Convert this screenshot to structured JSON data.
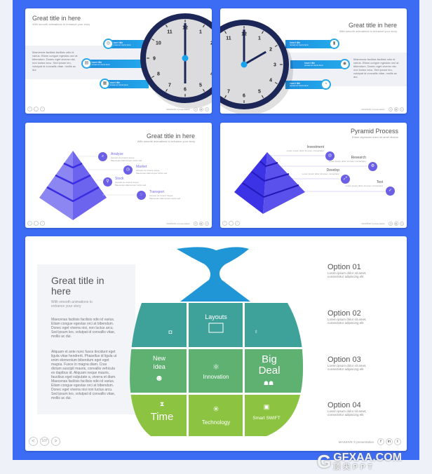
{
  "colors": {
    "background": "#3d6cf4",
    "clock_ring": "#1c2757",
    "clock_face": "#dcdcde",
    "accent_blue": "#1e9be4",
    "pyramid1": "#7b74f0",
    "pyramid2": "#4338e0",
    "bag_top": "#2196d6",
    "bag_teal": "#3fa29a",
    "bag_green": "#5fb172",
    "bag_lime": "#8cc441"
  },
  "clock_numbers": [
    "12",
    "1",
    "2",
    "3",
    "4",
    "5",
    "6",
    "7",
    "8",
    "9",
    "10",
    "11"
  ],
  "slide1": {
    "title": "Great title in here",
    "subtitle": "With smooth animations to enhance your story",
    "body": "Maecenas facilisis facilisis odio id varius. Etiam congue egestas orci at bibendum. Donec eget viverra nisi, non luctus arcu. Sed ipsum leo, volutpat id convallis vitae, mollis ac dui.",
    "items": [
      {
        "label": "Insert title",
        "desc": "Aenean ac viverra lacus"
      },
      {
        "label": "Insert title",
        "desc": "Aenean ac viverra lacus"
      },
      {
        "label": "Insert title",
        "desc": "Aenean ac viverra lacus"
      }
    ],
    "time": "6:00"
  },
  "slide2": {
    "title": "Great title in here",
    "subtitle": "With smooth animations to enhance your story",
    "body": "Maecenas facilisis facilisis odio id varius. Etiam congue egestas orci at bibendum. Donec eget viverra nisi, non luctus arcu. Sed ipsum leo, volutpat id convallis vitae, mollis ac dui.",
    "items": [
      {
        "label": "Insert title",
        "desc": "Aenean ac viverra lacus"
      },
      {
        "label": "Insert title",
        "desc": "Aenean ac viverra lacus"
      },
      {
        "label": "Insert title",
        "desc": "Aenean ac viverra lacus"
      }
    ],
    "time": "2:00"
  },
  "slide3": {
    "title": "Great title in here",
    "subtitle": "With smooth animations to enhance your story",
    "items": [
      {
        "label": "Analyze",
        "l1": "Aenean ac viverra neque",
        "l2": "Maecenas ullamcorper turpis sed"
      },
      {
        "label": "Market",
        "l1": "Aenean ac viverra neque",
        "l2": "Maecenas ullamcorper turpis sed"
      },
      {
        "label": "Stock",
        "l1": "Aenean ac viverra neque",
        "l2": "Maecenas ullamcorper turpis sed"
      },
      {
        "label": "Transport",
        "l1": "Aenean ac viverra neque",
        "l2": "Maecenas ullamcorper turpis sed"
      }
    ]
  },
  "slide4": {
    "title": "Pyramid Process",
    "subtitle": "Etiam dignissim dolor sit amet dictum",
    "items": [
      {
        "label": "Investment",
        "desc": "Lorem ipsum dolor sit amet, consectetur"
      },
      {
        "label": "Research",
        "desc": "Lorem ipsum dolor sit amet, consectetur"
      },
      {
        "label": "Develop",
        "desc": "Lorem ipsum dolor sit amet, consectetur"
      },
      {
        "label": "Test",
        "desc": "Lorem ipsum dolor sit amet, consectetur"
      }
    ]
  },
  "slide5": {
    "title": "Great title in here",
    "subtitle": "With smooth animations to enhance your story",
    "body1": "Maecenas facilisis facilisis odio id varius. Etiam congue egestas orci at bibendum. Donec eget viverra nisi, non luctus arcu. Sed ipsum leo, volutpat id convallis vitae, mollis ac dui.",
    "body2": "Aliquam et ante nunc fusce tincidunt eget ligula vitae hendrerit. Phasellus id ligula ut enim elementum bibendum eget eget magna. Fusce in magna diam. Cras dictum suscipit mauris, convallis vehicula ex dapibus id. Aliquam neque mauris, faucibus eget vulputate a, viverra et diam. Maecenas facilisis facilisis odio id varius. Etiam congue egestas orci at bibendum. Donec eget viverra nisi non luctus arcu. Sed ipsum leo, volutpat id convallis vitae, mollis ac dui.",
    "page": "107",
    "footer": "MASSIVE X presentation",
    "cells": {
      "layouts": "Layouts",
      "new": "New",
      "idea": "Idea",
      "innovation": "Innovation",
      "big": "Big",
      "deal": "Deal",
      "time": "Time",
      "technology": "Technology",
      "smart": "Smart SWIFT"
    },
    "options": [
      {
        "title": "Option 01",
        "l1": "Lorem ipsum dolor sit amet,",
        "l2": "consectetur adipiscing elit"
      },
      {
        "title": "Option 02",
        "l1": "Lorem ipsum dolor sit amet,",
        "l2": "consectetur adipiscing elit"
      },
      {
        "title": "Option 03",
        "l1": "Lorem ipsum dolor sit amet,",
        "l2": "consectetur adipiscing elit"
      },
      {
        "title": "Option 04",
        "l1": "Lorem ipsum dolor sit amet,",
        "l2": "consectetur adipiscing elit"
      }
    ]
  },
  "footer": {
    "credit": "MASSIVE X presentation",
    "prev": "<",
    "next": ">",
    "social": [
      "f",
      "in",
      "t"
    ]
  },
  "watermark": {
    "text": "GFXAA.COM",
    "sub": "顶尖PPT"
  }
}
